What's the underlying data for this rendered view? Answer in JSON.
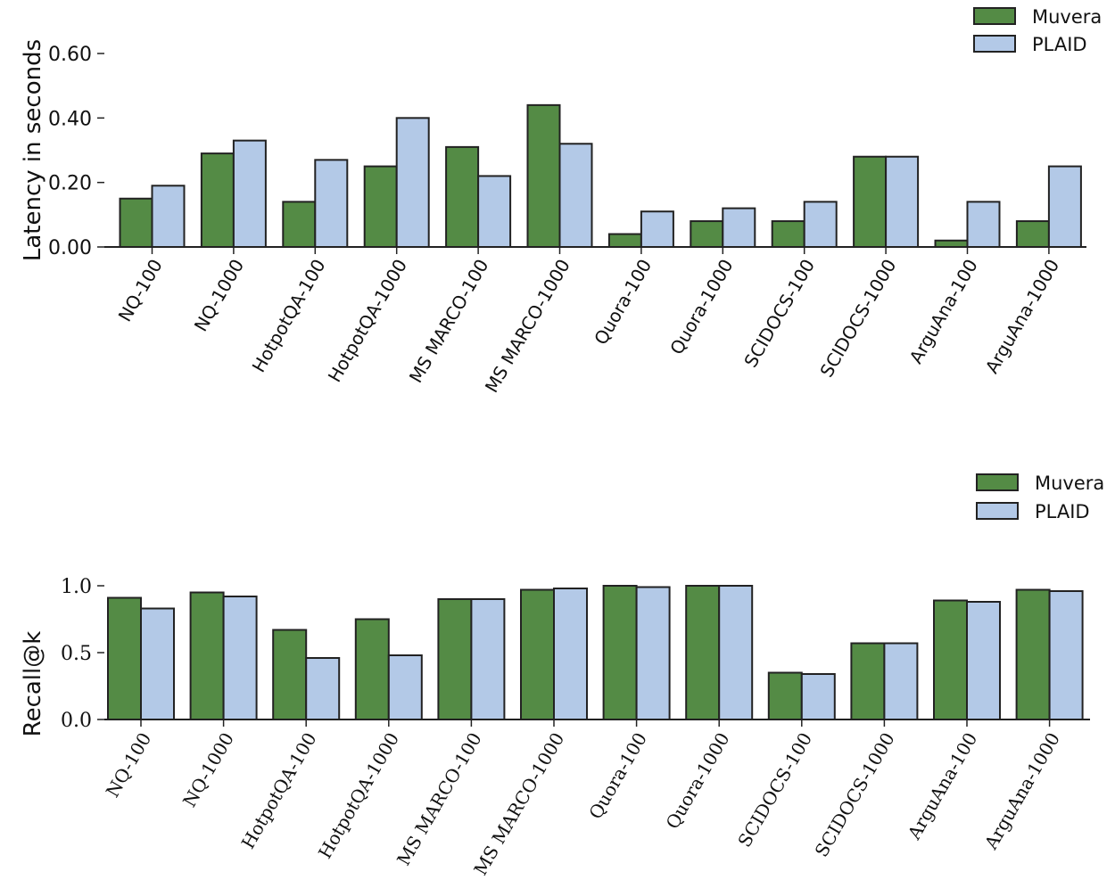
{
  "colors": {
    "muvera": "#548b45",
    "plaid": "#b3c9e7"
  },
  "chart_data": [
    {
      "type": "bar",
      "title": "",
      "xlabel": "",
      "ylabel": "Latency in seconds",
      "ylim": [
        0,
        0.6
      ],
      "yticks": [
        "0.00",
        "0.20",
        "0.40",
        "0.60"
      ],
      "legend": "top-right",
      "categories": [
        "NQ-100",
        "NQ-1000",
        "HotpotQA-100",
        "HotpotQA-1000",
        "MS MARCO-100",
        "MS MARCO-1000",
        "Quora-100",
        "Quora-1000",
        "SCIDOCS-100",
        "SCIDOCS-1000",
        "ArguAna-100",
        "ArguAna-1000"
      ],
      "series": [
        {
          "name": "Muvera",
          "values": [
            0.15,
            0.29,
            0.14,
            0.25,
            0.31,
            0.44,
            0.04,
            0.08,
            0.08,
            0.28,
            0.02,
            0.08
          ]
        },
        {
          "name": "PLAID",
          "values": [
            0.19,
            0.33,
            0.27,
            0.4,
            0.22,
            0.32,
            0.11,
            0.12,
            0.14,
            0.28,
            0.14,
            0.25
          ]
        }
      ]
    },
    {
      "type": "bar",
      "title": "",
      "xlabel": "",
      "ylabel": "Recall@k",
      "ylim": [
        0,
        1.0
      ],
      "yticks": [
        "0.0",
        "0.5",
        "1.0"
      ],
      "legend": "top-right",
      "categories": [
        "NQ-100",
        "NQ-1000",
        "HotpotQA-100",
        "HotpotQA-1000",
        "MS MARCO-100",
        "MS MARCO-1000",
        "Quora-100",
        "Quora-1000",
        "SCIDOCS-100",
        "SCIDOCS-1000",
        "ArguAna-100",
        "ArguAna-1000"
      ],
      "series": [
        {
          "name": "Muvera",
          "values": [
            0.91,
            0.95,
            0.67,
            0.75,
            0.9,
            0.97,
            1.0,
            1.0,
            0.35,
            0.57,
            0.89,
            0.97
          ]
        },
        {
          "name": "PLAID",
          "values": [
            0.83,
            0.92,
            0.46,
            0.48,
            0.9,
            0.98,
            0.99,
            1.0,
            0.34,
            0.57,
            0.88,
            0.96
          ]
        }
      ]
    }
  ]
}
